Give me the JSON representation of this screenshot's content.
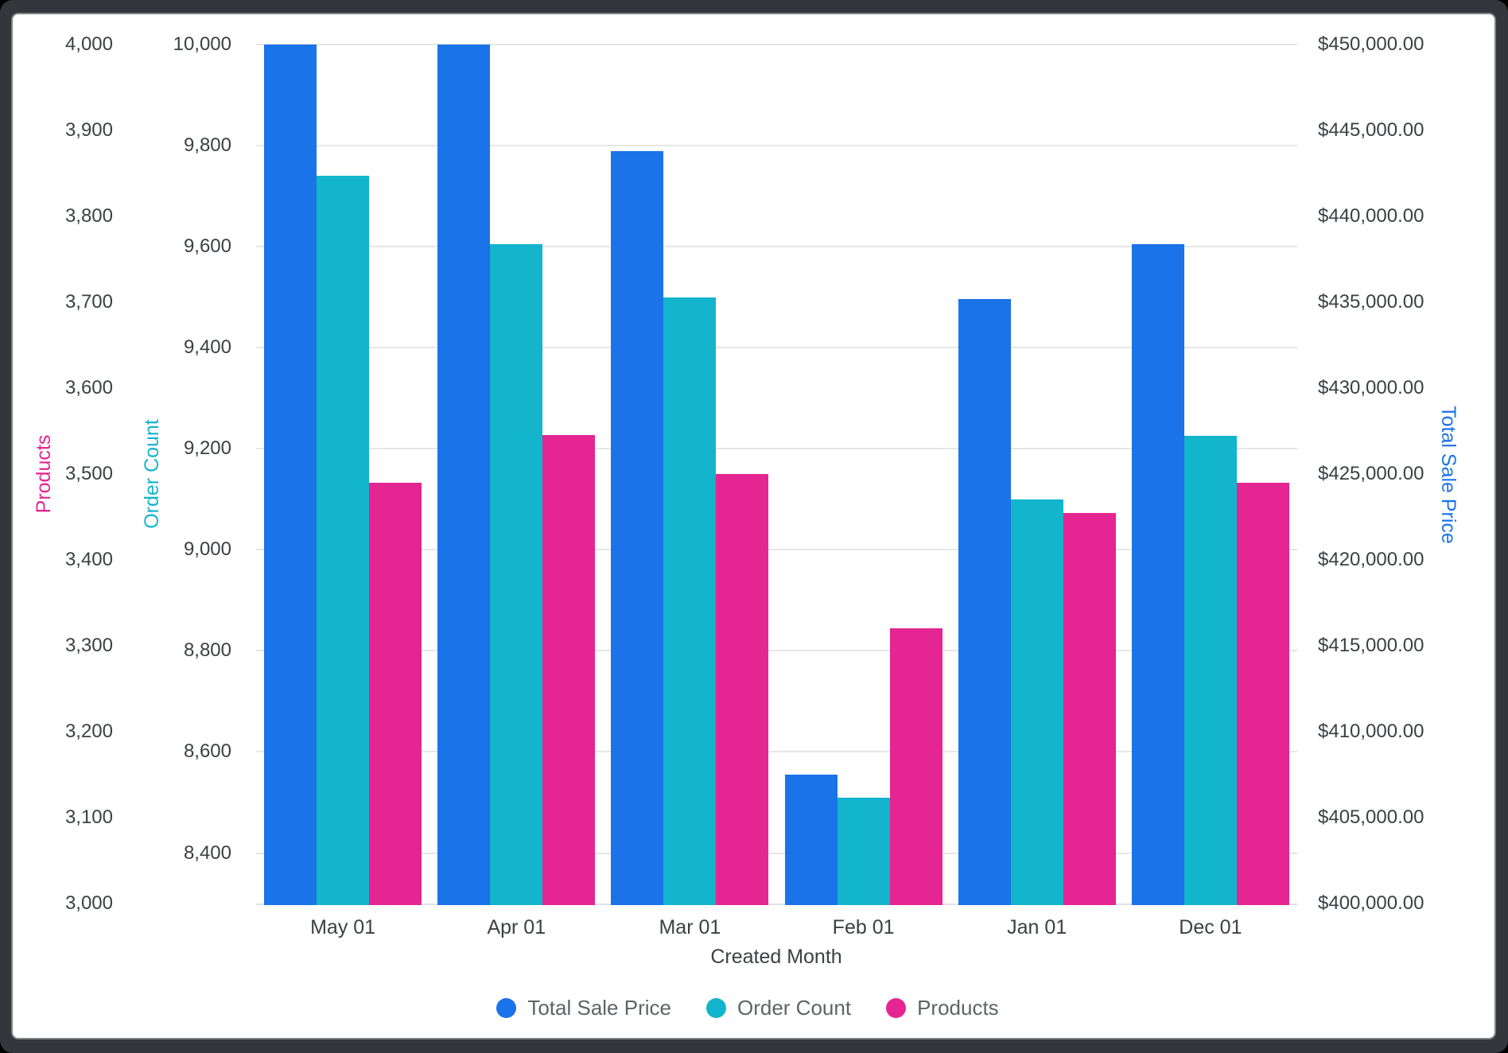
{
  "colors": {
    "series_blue": "#1a73e8",
    "series_teal": "#12b5cb",
    "series_pink": "#e52592",
    "grid": "#e6e6e6",
    "baseline": "#dfe2e7",
    "tick_text": "#3c4043",
    "legend_text": "#5f6368",
    "frame": "#33363a",
    "plot_background": "#ffffff"
  },
  "chart_data": {
    "type": "bar",
    "title": "",
    "categories": [
      "May 01",
      "Apr 01",
      "Mar 01",
      "Feb 01",
      "Jan 01",
      "Dec 01"
    ],
    "series": [
      {
        "name": "Total Sale Price",
        "axis": "price",
        "color": "#1a73e8",
        "values": [
          450000,
          450000,
          443800,
          407500,
          435200,
          438400
        ]
      },
      {
        "name": "Order Count",
        "axis": "orders",
        "color": "#12b5cb",
        "values": [
          9740,
          9605,
          9500,
          8510,
          9100,
          9225
        ]
      },
      {
        "name": "Products",
        "axis": "products",
        "color": "#e52592",
        "values": [
          3490,
          3545,
          3500,
          3320,
          3455,
          3490
        ]
      }
    ],
    "xlabel": "Created Month",
    "grid": "horizontal-on",
    "axes": {
      "products": {
        "title": "Products",
        "side": "left-outer",
        "color": "#e52592",
        "min": 3000,
        "max": 4000,
        "tick_values": [
          4000,
          3900,
          3800,
          3700,
          3600,
          3500,
          3400,
          3300,
          3200,
          3100,
          3000
        ],
        "tick_labels": [
          "4,000",
          "3,900",
          "3,800",
          "3,700",
          "3,600",
          "3,500",
          "3,400",
          "3,300",
          "3,200",
          "3,100",
          "3,000"
        ]
      },
      "orders": {
        "title": "Order Count",
        "side": "left-inner",
        "color": "#12b5cb",
        "min": 8300,
        "max": 10000,
        "gridlines": true,
        "tick_values": [
          10000,
          9800,
          9600,
          9400,
          9200,
          9000,
          8800,
          8600,
          8400
        ],
        "tick_labels": [
          "10,000",
          "9,800",
          "9,600",
          "9,400",
          "9,200",
          "9,000",
          "8,800",
          "8,600",
          "8,400"
        ]
      },
      "price": {
        "title": "Total Sale Price",
        "side": "right",
        "color": "#1a73e8",
        "min": 400000,
        "max": 450000,
        "tick_values": [
          450000,
          445000,
          440000,
          435000,
          430000,
          425000,
          420000,
          415000,
          410000,
          405000,
          400000
        ],
        "tick_labels": [
          "$450,000.00",
          "$445,000.00",
          "$440,000.00",
          "$435,000.00",
          "$430,000.00",
          "$425,000.00",
          "$420,000.00",
          "$415,000.00",
          "$410,000.00",
          "$405,000.00",
          "$400,000.00"
        ]
      }
    },
    "legend": {
      "position": "bottom",
      "items": [
        {
          "label": "Total Sale Price",
          "color": "#1a73e8"
        },
        {
          "label": "Order Count",
          "color": "#12b5cb"
        },
        {
          "label": "Products",
          "color": "#e52592"
        }
      ]
    }
  }
}
